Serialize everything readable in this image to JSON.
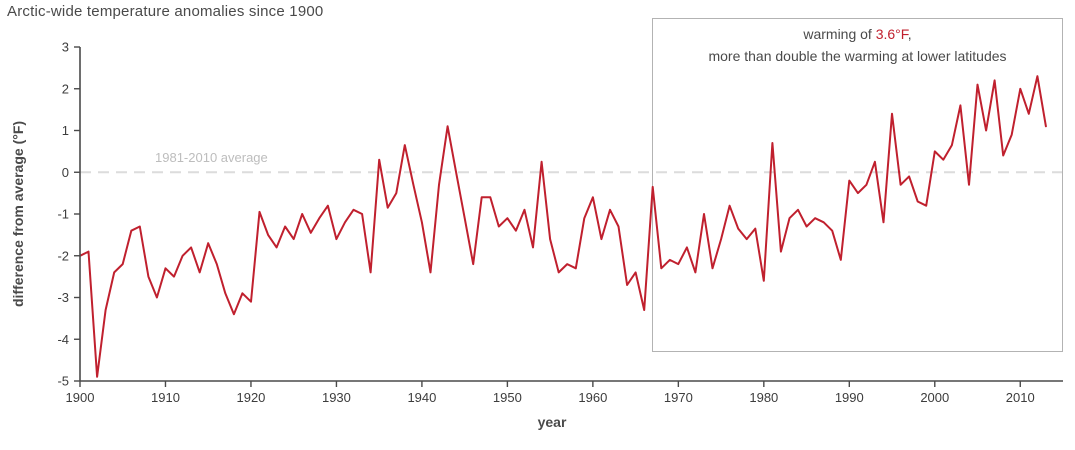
{
  "chart_data": {
    "type": "line",
    "title": "Arctic-wide temperature anomalies since 1900",
    "xlabel": "year",
    "ylabel": "difference from average (°F)",
    "baseline_label": "1981-2010 average",
    "baseline_value": 0,
    "x_start": 1900,
    "x_axis_end": 2015,
    "ylim": [
      -5,
      3
    ],
    "y_ticks": [
      3,
      2,
      1,
      0,
      -1,
      -2,
      -3,
      -4,
      -5
    ],
    "x_ticks": [
      1900,
      1910,
      1920,
      1930,
      1940,
      1950,
      1960,
      1970,
      1980,
      1990,
      2000,
      2010
    ],
    "line_color": "#c0202e",
    "axis_color": "#4a4a4a",
    "baseline_line_color": "#dcdcdc",
    "annotation_box_color": "#b3b3b3",
    "grid": false,
    "series": [
      {
        "name": "Arctic temperature anomaly",
        "year_start": 1900,
        "values": [
          -2.0,
          -1.9,
          -4.9,
          -3.3,
          -2.4,
          -2.2,
          -1.4,
          -1.3,
          -2.5,
          -3.0,
          -2.3,
          -2.5,
          -2.0,
          -1.8,
          -2.4,
          -1.7,
          -2.2,
          -2.9,
          -3.4,
          -2.9,
          -3.1,
          -0.95,
          -1.5,
          -1.8,
          -1.3,
          -1.6,
          -1.0,
          -1.45,
          -1.1,
          -0.8,
          -1.6,
          -1.2,
          -0.9,
          -1.0,
          -2.4,
          0.3,
          -0.85,
          -0.5,
          0.65,
          -0.3,
          -1.2,
          -2.4,
          -0.3,
          1.1,
          0.0,
          -1.1,
          -2.2,
          -0.6,
          -0.6,
          -1.3,
          -1.1,
          -1.4,
          -0.9,
          -1.8,
          0.25,
          -1.6,
          -2.4,
          -2.2,
          -2.3,
          -1.1,
          -0.6,
          -1.6,
          -0.9,
          -1.3,
          -2.7,
          -2.4,
          -3.3,
          -0.35,
          -2.3,
          -2.1,
          -2.2,
          -1.8,
          -2.4,
          -1.0,
          -2.3,
          -1.6,
          -0.8,
          -1.35,
          -1.6,
          -1.35,
          -2.6,
          0.7,
          -1.9,
          -1.1,
          -0.9,
          -1.3,
          -1.1,
          -1.2,
          -1.4,
          -2.1,
          -0.2,
          -0.5,
          -0.3,
          0.25,
          -1.2,
          1.4,
          -0.3,
          -0.1,
          -0.7,
          -0.8,
          0.5,
          0.3,
          0.65,
          1.6,
          -0.3,
          2.1,
          1.0,
          2.2,
          0.4,
          0.9,
          2.0,
          1.4,
          2.3,
          1.1
        ]
      }
    ]
  },
  "annotation": {
    "prefix": "warming of ",
    "highlight": "3.6°F",
    "suffix": ",",
    "line2": "more than double the warming at lower latitudes"
  }
}
